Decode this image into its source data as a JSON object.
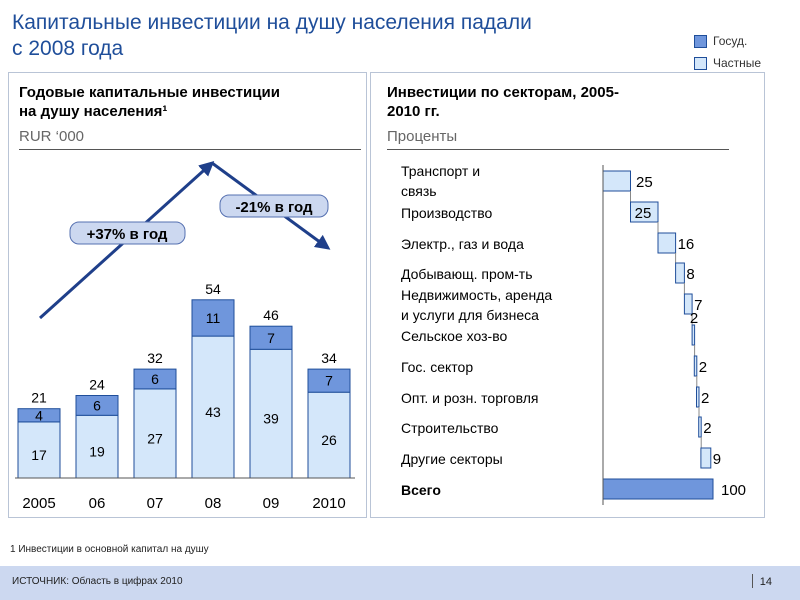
{
  "title": [
    "Капитальные  инвестиции  на душу  населения падали",
    "с 2008 года"
  ],
  "legend": [
    {
      "label": "Госуд.",
      "color": "#6f96dc"
    },
    {
      "label": "Частные",
      "color": "#d4e7fa"
    }
  ],
  "left_panel": {
    "title_lines": [
      "Годовые капитальные инвестиции",
      "на душу  населения¹"
    ],
    "subtitle": "RUR ‘000"
  },
  "right_panel": {
    "title_lines": [
      "Инвестиции по секторам, 2005-",
      "2010 гг."
    ],
    "subtitle": "Проценты"
  },
  "colors": {
    "state": "#6f96dc",
    "private": "#d4e7fa",
    "outline": "#1f4e9a",
    "arrow": "#1f3f8a",
    "callout": "#ccd8f0"
  },
  "chart_data": [
    {
      "type": "bar",
      "stacked": true,
      "categories": [
        "2005",
        "06",
        "07",
        "08",
        "09",
        "2010"
      ],
      "series": [
        {
          "name": "Частные",
          "values": [
            17,
            19,
            27,
            43,
            39,
            26
          ]
        },
        {
          "name": "Госуд.",
          "values": [
            4,
            6,
            6,
            11,
            7,
            7
          ]
        }
      ],
      "totals": [
        21,
        24,
        32,
        54,
        46,
        34
      ],
      "ylim": [
        0,
        60
      ],
      "annotations": [
        {
          "text": "+37% в год",
          "trend": "up",
          "from": "2005",
          "to": "08"
        },
        {
          "text": "-21% в год",
          "trend": "down",
          "from": "08",
          "to": "2010"
        }
      ]
    },
    {
      "type": "bar",
      "waterfall": true,
      "orientation": "horizontal",
      "categories": [
        "Транспорт и связь",
        "Производство",
        "Электр., газ и вода",
        "Добывающ. пром-ть",
        "Недвижимость, аренда и услуги для бизнеса",
        "Сельское хоз-во",
        "Гос. сектор",
        "Опт. и розн. торговля",
        "Строительство",
        "Другие секторы",
        "Всего"
      ],
      "values": [
        25,
        25,
        16,
        8,
        7,
        2,
        2,
        2,
        2,
        9,
        100
      ],
      "value_labels": [
        "25",
        "25",
        "16",
        "8",
        "7",
        "2",
        "2",
        "2",
        "2",
        "9",
        "100"
      ],
      "xlim": [
        0,
        100
      ]
    }
  ],
  "footnote": "1 Инвестиции  в основной капитал  на душу",
  "source": "ИСТОЧНИК:  Область  в цифрах  2010",
  "page_number": "14"
}
